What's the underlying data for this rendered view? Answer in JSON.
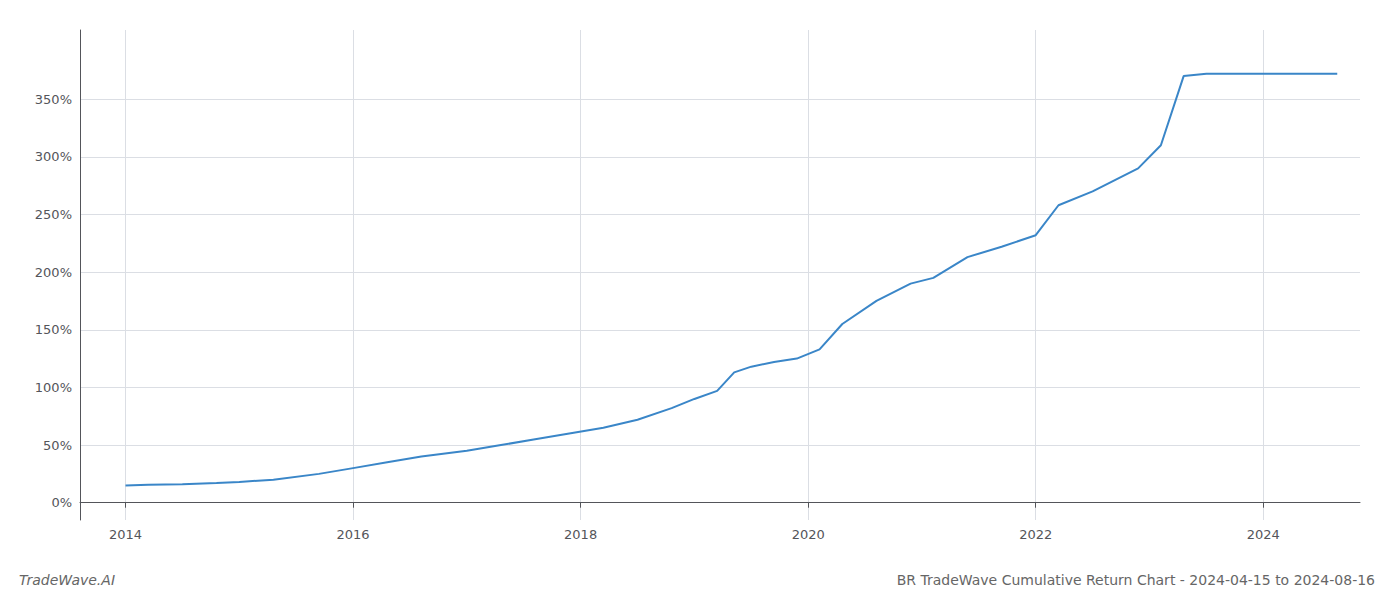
{
  "chart_data": {
    "type": "line",
    "title": "BR TradeWave Cumulative Return Chart - 2024-04-15 to 2024-08-16",
    "annotations": [
      "TradeWave.AI"
    ],
    "x": [
      2014.0,
      2014.2,
      2014.5,
      2014.8,
      2015.0,
      2015.3,
      2015.7,
      2016.0,
      2016.3,
      2016.6,
      2017.0,
      2017.3,
      2017.6,
      2017.9,
      2018.2,
      2018.5,
      2018.8,
      2019.0,
      2019.2,
      2019.35,
      2019.5,
      2019.7,
      2019.9,
      2020.1,
      2020.3,
      2020.6,
      2020.9,
      2021.1,
      2021.4,
      2021.7,
      2022.0,
      2022.2,
      2022.5,
      2022.7,
      2022.9,
      2023.1,
      2023.3,
      2023.5,
      2023.7,
      2024.0,
      2024.3,
      2024.65
    ],
    "values": [
      15,
      15.5,
      16,
      17,
      18,
      20,
      25,
      30,
      35,
      40,
      45,
      50,
      55,
      60,
      65,
      72,
      82,
      90,
      97,
      113,
      118,
      122,
      125,
      133,
      155,
      175,
      190,
      195,
      213,
      222,
      232,
      258,
      270,
      280,
      290,
      310,
      370,
      372,
      372,
      372,
      372,
      372
    ],
    "color": "#3a86c8",
    "xlim": [
      2013.6,
      2024.85
    ],
    "xticks": [
      2014,
      2016,
      2018,
      2020,
      2022,
      2024
    ],
    "ylim": [
      -15,
      410
    ],
    "yticks": [
      {
        "value": 0,
        "label": "0%"
      },
      {
        "value": 50,
        "label": "50%"
      },
      {
        "value": 100,
        "label": "100%"
      },
      {
        "value": 150,
        "label": "150%"
      },
      {
        "value": 200,
        "label": "200%"
      },
      {
        "value": 250,
        "label": "250%"
      },
      {
        "value": 300,
        "label": "300%"
      },
      {
        "value": 350,
        "label": "350%"
      }
    ],
    "grid": true
  }
}
